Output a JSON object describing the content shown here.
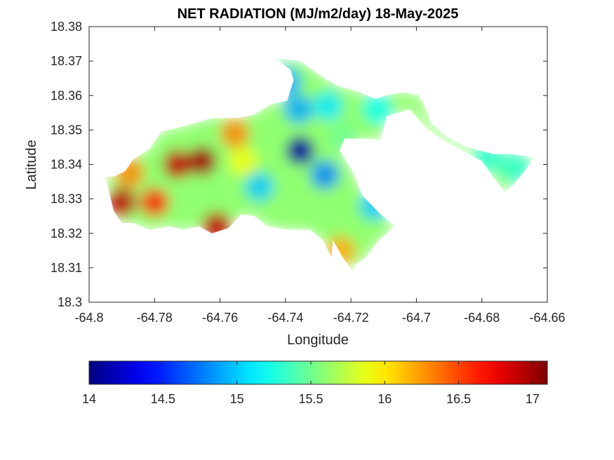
{
  "chart_data": {
    "type": "heatmap",
    "title": "NET RADIATION (MJ/m2/day) 18-May-2025",
    "xlabel": "Longitude",
    "ylabel": "Latitude",
    "xlim": [
      -64.8,
      -64.66
    ],
    "ylim": [
      18.3,
      18.38
    ],
    "x_ticks": [
      -64.8,
      -64.78,
      -64.76,
      -64.74,
      -64.72,
      -64.7,
      -64.68,
      -64.66
    ],
    "x_tick_labels": [
      "-64.8",
      "-64.78",
      "-64.76",
      "-64.74",
      "-64.72",
      "-64.7",
      "-64.68",
      "-64.66"
    ],
    "y_ticks": [
      18.3,
      18.31,
      18.32,
      18.33,
      18.34,
      18.35,
      18.36,
      18.37,
      18.38
    ],
    "y_tick_labels": [
      "18.3",
      "18.31",
      "18.32",
      "18.33",
      "18.34",
      "18.35",
      "18.36",
      "18.37",
      "18.38"
    ],
    "grid": false,
    "colormap": "jet",
    "colorbar": {
      "orientation": "horizontal",
      "placement": "below",
      "range": [
        14,
        17.1
      ],
      "ticks": [
        14,
        14.5,
        15,
        15.5,
        16,
        16.5,
        17
      ],
      "tick_labels": [
        "14",
        "14.5",
        "15",
        "15.5",
        "16",
        "16.5",
        "17"
      ]
    },
    "region_outline": [
      [
        -64.7925,
        18.3365
      ],
      [
        -64.789,
        18.338
      ],
      [
        -64.7865,
        18.3415
      ],
      [
        -64.7815,
        18.3445
      ],
      [
        -64.778,
        18.3495
      ],
      [
        -64.7715,
        18.351
      ],
      [
        -64.7625,
        18.3535
      ],
      [
        -64.7545,
        18.3535
      ],
      [
        -64.7495,
        18.3545
      ],
      [
        -64.7445,
        18.3575
      ],
      [
        -64.7395,
        18.3585
      ],
      [
        -64.7385,
        18.3615
      ],
      [
        -64.7375,
        18.3645
      ],
      [
        -64.7385,
        18.3675
      ],
      [
        -64.7435,
        18.371
      ],
      [
        -64.7355,
        18.37
      ],
      [
        -64.7325,
        18.368
      ],
      [
        -64.728,
        18.365
      ],
      [
        -64.7245,
        18.363
      ],
      [
        -64.7175,
        18.361
      ],
      [
        -64.7125,
        18.359
      ],
      [
        -64.7095,
        18.36
      ],
      [
        -64.704,
        18.361
      ],
      [
        -64.699,
        18.36
      ],
      [
        -64.697,
        18.356
      ],
      [
        -64.6955,
        18.352
      ],
      [
        -64.6905,
        18.348
      ],
      [
        -64.6845,
        18.345
      ],
      [
        -64.6765,
        18.343
      ],
      [
        -64.6705,
        18.343
      ],
      [
        -64.664,
        18.342
      ],
      [
        -64.667,
        18.338
      ],
      [
        -64.6705,
        18.334
      ],
      [
        -64.673,
        18.332
      ],
      [
        -64.6755,
        18.335
      ],
      [
        -64.68,
        18.341
      ],
      [
        -64.686,
        18.344
      ],
      [
        -64.692,
        18.347
      ],
      [
        -64.6975,
        18.351
      ],
      [
        -64.702,
        18.356
      ],
      [
        -64.709,
        18.354
      ],
      [
        -64.711,
        18.347
      ],
      [
        -64.716,
        18.3475
      ],
      [
        -64.722,
        18.3475
      ],
      [
        -64.7235,
        18.344
      ],
      [
        -64.7195,
        18.338
      ],
      [
        -64.7165,
        18.331
      ],
      [
        -64.7115,
        18.326
      ],
      [
        -64.7065,
        18.322
      ],
      [
        -64.7115,
        18.318
      ],
      [
        -64.7155,
        18.313
      ],
      [
        -64.7185,
        18.311
      ],
      [
        -64.7195,
        18.309
      ],
      [
        -64.7225,
        18.313
      ],
      [
        -64.7255,
        18.318
      ],
      [
        -64.726,
        18.313
      ],
      [
        -64.7285,
        18.318
      ],
      [
        -64.7325,
        18.321
      ],
      [
        -64.7395,
        18.321
      ],
      [
        -64.7455,
        18.322
      ],
      [
        -64.7495,
        18.325
      ],
      [
        -64.7535,
        18.3255
      ],
      [
        -64.7575,
        18.3215
      ],
      [
        -64.7625,
        18.32
      ],
      [
        -64.7665,
        18.322
      ],
      [
        -64.7715,
        18.321
      ],
      [
        -64.7755,
        18.322
      ],
      [
        -64.7815,
        18.321
      ],
      [
        -64.7865,
        18.323
      ],
      [
        -64.79,
        18.323
      ],
      [
        -64.7925,
        18.3265
      ],
      [
        -64.7935,
        18.3305
      ],
      [
        -64.795,
        18.3365
      ]
    ],
    "field_features": [
      {
        "lon": -64.7355,
        "lat": 18.344,
        "value": 14.1
      },
      {
        "lon": -64.728,
        "lat": 18.337,
        "value": 14.8
      },
      {
        "lon": -64.736,
        "lat": 18.356,
        "value": 14.9
      },
      {
        "lon": -64.748,
        "lat": 18.3335,
        "value": 15.0
      },
      {
        "lon": -64.7395,
        "lat": 18.364,
        "value": 14.9
      },
      {
        "lon": -64.727,
        "lat": 18.357,
        "value": 15.1
      },
      {
        "lon": -64.712,
        "lat": 18.356,
        "value": 15.2
      },
      {
        "lon": -64.713,
        "lat": 18.328,
        "value": 15.0
      },
      {
        "lon": -64.678,
        "lat": 18.342,
        "value": 15.3
      },
      {
        "lon": -64.67,
        "lat": 18.339,
        "value": 15.3
      },
      {
        "lon": -64.7225,
        "lat": 18.348,
        "value": 15.5
      },
      {
        "lon": -64.753,
        "lat": 18.341,
        "value": 15.9
      },
      {
        "lon": -64.723,
        "lat": 18.315,
        "value": 16.2
      },
      {
        "lon": -64.7555,
        "lat": 18.349,
        "value": 16.3
      },
      {
        "lon": -64.773,
        "lat": 18.34,
        "value": 16.9
      },
      {
        "lon": -64.7655,
        "lat": 18.341,
        "value": 17.0
      },
      {
        "lon": -64.79,
        "lat": 18.329,
        "value": 16.9
      },
      {
        "lon": -64.761,
        "lat": 18.322,
        "value": 16.9
      },
      {
        "lon": -64.78,
        "lat": 18.329,
        "value": 16.6
      },
      {
        "lon": -64.7875,
        "lat": 18.3375,
        "value": 16.3
      }
    ]
  }
}
